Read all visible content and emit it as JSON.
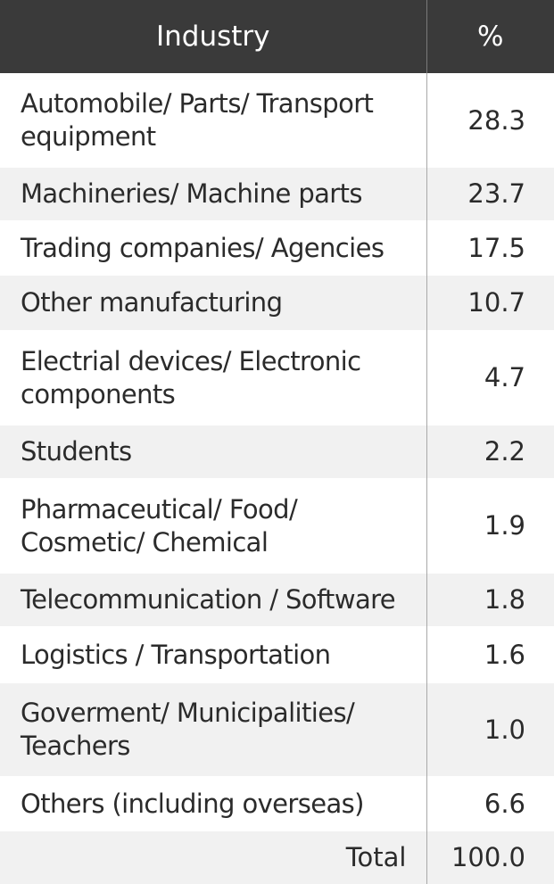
{
  "table": {
    "headers": {
      "industry": "Industry",
      "percent": "%"
    },
    "rows": [
      {
        "industry": "Automobile/ Parts/ Transport equipment",
        "percent": "28.3"
      },
      {
        "industry": "Machineries/ Machine parts",
        "percent": "23.7"
      },
      {
        "industry": "Trading companies/ Agencies",
        "percent": "17.5"
      },
      {
        "industry": "Other manufacturing",
        "percent": "10.7"
      },
      {
        "industry": "Electrial devices/ Electronic components",
        "percent": "4.7"
      },
      {
        "industry": "Students",
        "percent": "2.2"
      },
      {
        "industry": "Pharmaceutical/ Food/ Cosmetic/ Chemical",
        "percent": "1.9"
      },
      {
        "industry": "Telecommunication / Software",
        "percent": "1.8"
      },
      {
        "industry": "Logistics / Transportation",
        "percent": "1.6"
      },
      {
        "industry": "Goverment/ Municipalities/ Teachers",
        "percent": "1.0"
      },
      {
        "industry": "Others (including overseas)",
        "percent": "6.6"
      }
    ],
    "total": {
      "label": "Total",
      "percent": "100.0"
    }
  },
  "colors": {
    "header_bg": "#3a3a3a",
    "header_text": "#ffffff",
    "stripe": "#f1f1f1",
    "text": "#2b2b2b"
  }
}
